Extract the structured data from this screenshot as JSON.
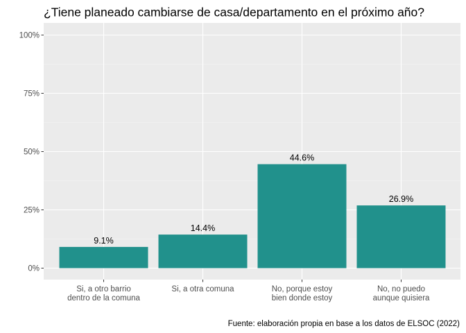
{
  "chart_data": {
    "type": "bar",
    "title": "¿Tiene planeado cambiarse de casa/departamento en el próximo año?",
    "caption": "Fuente: elaboración propia en base a los datos de ELSOC (2022)",
    "xlabel": "",
    "ylabel": "",
    "categories": [
      [
        "Si, a otro barrio",
        "dentro de la comuna"
      ],
      [
        "Si, a otra comuna"
      ],
      [
        "No, porque estoy",
        "bien donde estoy"
      ],
      [
        "No, no puedo",
        "aunque quisiera"
      ]
    ],
    "values": [
      9.1,
      14.4,
      44.6,
      26.9
    ],
    "value_labels": [
      "9.1%",
      "14.4%",
      "44.6%",
      "26.9%"
    ],
    "ylim": [
      0,
      100
    ],
    "yticks": [
      0,
      25,
      50,
      75,
      100
    ],
    "ytick_labels": [
      "0%",
      "25%",
      "50%",
      "75%",
      "100%"
    ],
    "grid": true,
    "legend": "none",
    "colors": {
      "bar": "#21918c",
      "panel": "#ebebeb",
      "grid_major": "#ffffff",
      "grid_minor": "#f5f5f5",
      "tick_text": "#4d4d4d"
    }
  }
}
